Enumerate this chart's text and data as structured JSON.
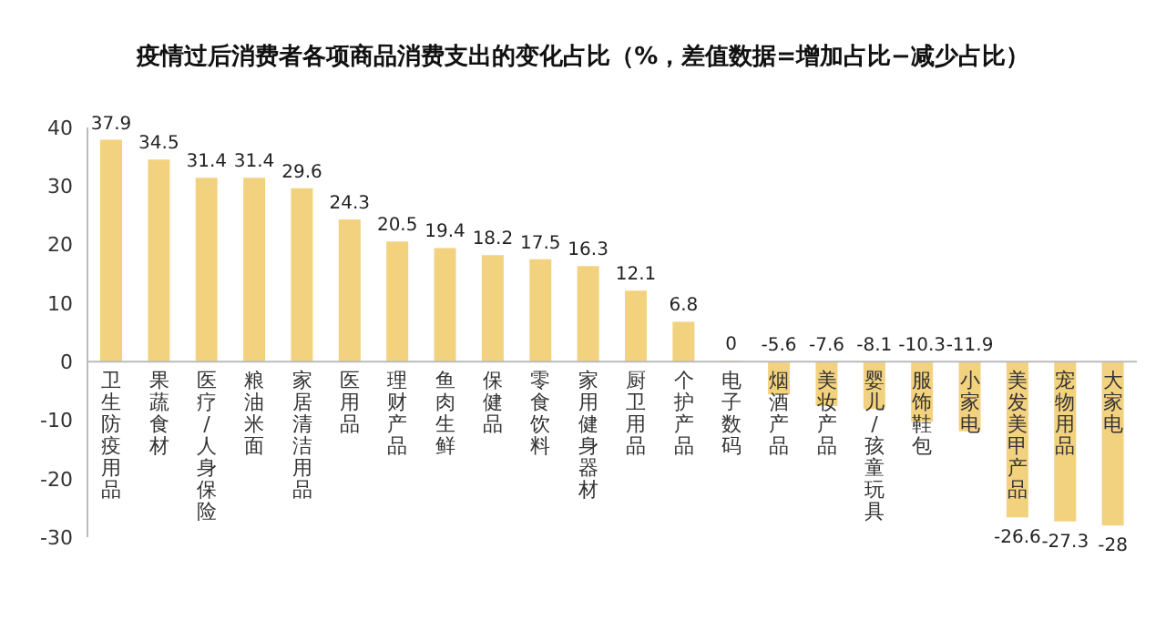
{
  "chart_data": {
    "type": "bar",
    "title": "疫情过后消费者各项商品消费支出的变化占比（%，差值数据=增加占比−减少占比）",
    "categories": [
      "卫生防疫用品",
      "果蔬食材",
      "医疗/人身保险",
      "粮油米面",
      "家居清洁用品",
      "医用品",
      "理财产品",
      "鱼肉生鲜",
      "保健品",
      "零食饮料",
      "家用健身器材",
      "厨卫用品",
      "个护产品",
      "电子数码",
      "烟酒产品",
      "美妆产品",
      "婴儿/孩童玩具",
      "服饰鞋包",
      "小家电",
      "美发美甲产品",
      "宠物用品",
      "大家电"
    ],
    "values": [
      37.9,
      34.5,
      31.4,
      31.4,
      29.6,
      24.3,
      20.5,
      19.4,
      18.2,
      17.5,
      16.3,
      12.1,
      6.8,
      0,
      -5.6,
      -7.6,
      -8.1,
      -10.3,
      -11.9,
      -26.6,
      -27.3,
      -28
    ],
    "color": "#f3d27f",
    "ylim": [
      -30,
      40
    ],
    "yticks": [
      -30,
      -20,
      -10,
      0,
      10,
      20,
      30,
      40
    ],
    "grid": false,
    "data_labels": true,
    "legend": false
  }
}
